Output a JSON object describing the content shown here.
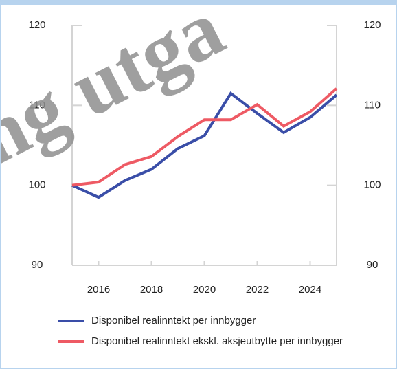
{
  "chart_data": {
    "type": "line",
    "watermark": "ing utga",
    "x": [
      2015,
      2016,
      2017,
      2018,
      2019,
      2020,
      2021,
      2022,
      2023,
      2024,
      2025
    ],
    "xlim": [
      2015,
      2025
    ],
    "xticks": [
      2016,
      2018,
      2020,
      2022,
      2024
    ],
    "ylim": [
      90,
      120
    ],
    "yticks": [
      90,
      100,
      110,
      120
    ],
    "series": [
      {
        "name": "Disponibel realinntekt per innbygger",
        "color": "#3a4ea8",
        "values": [
          100,
          98.5,
          100.6,
          102.0,
          104.6,
          106.2,
          111.5,
          109.0,
          106.6,
          108.5,
          111.3
        ]
      },
      {
        "name": "Disponibel realinntekt ekskl. aksjeutbytte per innbygger",
        "color": "#ee5a64",
        "values": [
          100,
          100.4,
          102.6,
          103.6,
          106.1,
          108.2,
          108.2,
          110.1,
          107.4,
          109.2,
          112.1
        ]
      }
    ],
    "legend": "bottom"
  }
}
